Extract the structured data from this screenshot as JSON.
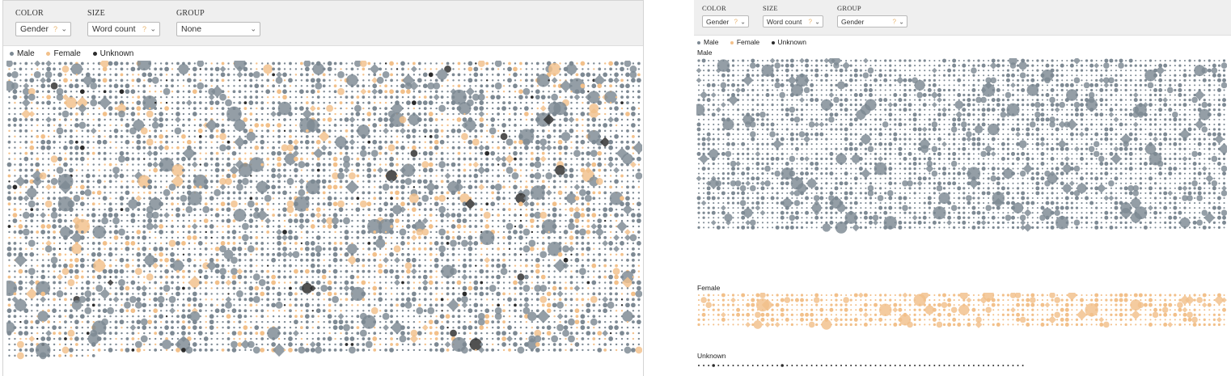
{
  "colors": {
    "male": "#7d8993",
    "female": "#f2c08a",
    "unknown": "#2b2b2b"
  },
  "views": [
    {
      "controls": [
        {
          "label": "COLOR",
          "value": "Gender",
          "help": "?",
          "chevron": "⌄"
        },
        {
          "label": "SIZE",
          "value": "Word count",
          "help": "?",
          "chevron": "⌄"
        },
        {
          "label": "GROUP",
          "value": "None",
          "help": "",
          "chevron": "⌄"
        }
      ],
      "legend": [
        "Male",
        "Female",
        "Unknown"
      ]
    },
    {
      "controls": [
        {
          "label": "COLOR",
          "value": "Gender",
          "help": "?",
          "chevron": "⌄"
        },
        {
          "label": "SIZE",
          "value": "Word count",
          "help": "?",
          "chevron": "⌄"
        },
        {
          "label": "GROUP",
          "value": "Gender",
          "help": "?",
          "chevron": "⌄"
        }
      ],
      "legend": [
        "Male",
        "Female",
        "Unknown"
      ],
      "groups": [
        "Male",
        "Female",
        "Unknown"
      ]
    }
  ],
  "chart_data": [
    {
      "type": "scatter",
      "title": "",
      "encoding": {
        "color": "Gender",
        "size": "Word count",
        "group": "None"
      },
      "series": [
        {
          "name": "Male",
          "approx_share": 0.78
        },
        {
          "name": "Female",
          "approx_share": 0.2
        },
        {
          "name": "Unknown",
          "approx_share": 0.02
        }
      ],
      "grid_columns": 113,
      "grid_rows": 53
    },
    {
      "type": "scatter",
      "title": "",
      "encoding": {
        "color": "Gender",
        "size": "Word count",
        "group": "Gender"
      },
      "series": [
        {
          "name": "Male",
          "grid_columns": 108,
          "grid_rows": 35
        },
        {
          "name": "Female",
          "grid_columns": 108,
          "grid_rows": 7
        },
        {
          "name": "Unknown",
          "grid_columns": 67,
          "grid_rows": 1
        }
      ]
    }
  ]
}
